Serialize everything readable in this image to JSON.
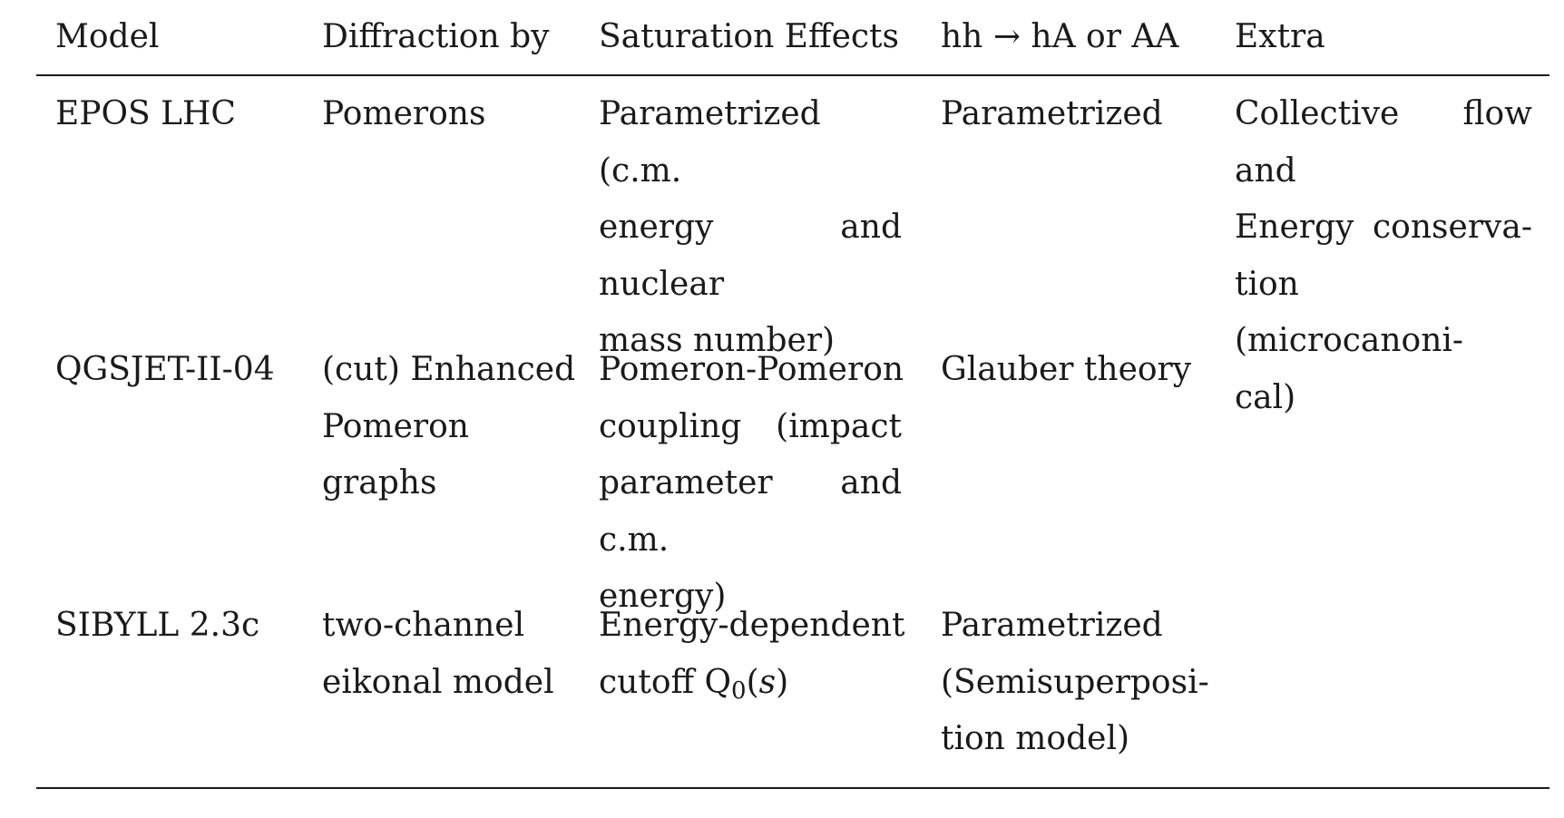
{
  "table": {
    "headers": {
      "model": "Model",
      "diffraction": "Diffraction by",
      "saturation": "Saturation Effects",
      "hh": "hh → hA or AA",
      "extra": "Extra"
    },
    "rows": [
      {
        "model": "EPOS LHC",
        "diffraction": [
          "Pomerons"
        ],
        "saturation": [
          "Parametrized (c.m.",
          "energy and nuclear",
          "mass number)"
        ],
        "hh": [
          "Parametrized"
        ],
        "extra": [
          "Collective flow and",
          "Energy conserva-",
          "tion (microcanoni-",
          "cal)"
        ]
      },
      {
        "model": "QGSJET-II-04",
        "diffraction": [
          "(cut) Enhanced",
          "Pomeron",
          "graphs"
        ],
        "saturation": [
          "Pomeron-Pomeron",
          "coupling (impact",
          "parameter and c.m.",
          "energy)"
        ],
        "hh": [
          "Glauber theory"
        ],
        "extra": []
      },
      {
        "model": "SIBYLL 2.3c",
        "diffraction": [
          "two-channel",
          "eikonal model"
        ],
        "saturation_prefix": "Energy-dependent",
        "saturation_cutoff": "cutoff Q",
        "saturation_sub": "0",
        "saturation_paren_open": "(",
        "saturation_var": "s",
        "saturation_paren_close": ")",
        "hh": [
          "Parametrized",
          "(Semisuperposi-",
          "tion model)"
        ],
        "extra": []
      }
    ]
  }
}
